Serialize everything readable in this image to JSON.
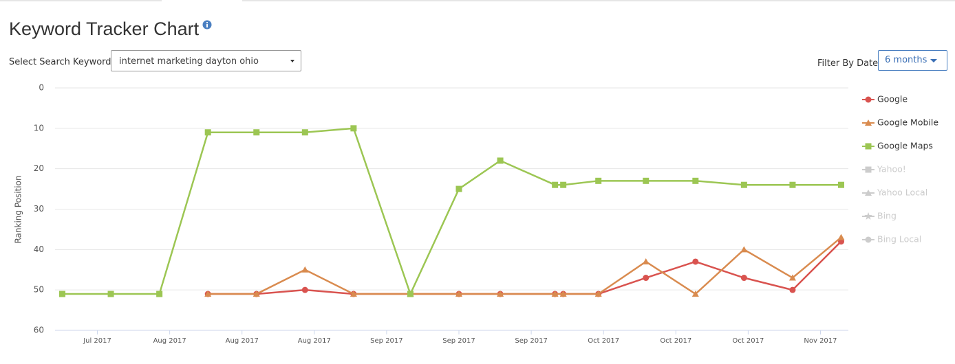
{
  "page": {
    "title": "Keyword Tracker Chart",
    "keyword_label": "Select Search Keyword:",
    "keyword": "internet marketing dayton ohio",
    "filter_label": "Filter By Date",
    "filter_value": "6 months"
  },
  "chart_data": {
    "type": "line",
    "y_label": "Ranking Position",
    "y_inverted": true,
    "grid": true,
    "x": [
      -3.4,
      1.3,
      6,
      10.7,
      15.4,
      20.1,
      24.8,
      30.3,
      35,
      39,
      44.3,
      45.1,
      48.5,
      53.1,
      57.9,
      62.6,
      67.3,
      72
    ],
    "xlim": [
      -4.1,
      72.7
    ],
    "xticks": [
      {
        "value": 0,
        "label": "Jul 2017"
      },
      {
        "value": 7,
        "label": "Aug 2017"
      },
      {
        "value": 14,
        "label": "Aug 2017"
      },
      {
        "value": 21,
        "label": "Aug 2017"
      },
      {
        "value": 28,
        "label": "Sep 2017"
      },
      {
        "value": 35,
        "label": "Sep 2017"
      },
      {
        "value": 42,
        "label": "Sep 2017"
      },
      {
        "value": 49,
        "label": "Oct 2017"
      },
      {
        "value": 56,
        "label": "Oct 2017"
      },
      {
        "value": 63,
        "label": "Oct 2017"
      },
      {
        "value": 70,
        "label": "Nov 2017"
      }
    ],
    "ylim": [
      0,
      60
    ],
    "yticks": [
      0,
      10,
      20,
      30,
      40,
      50,
      60
    ],
    "series": [
      {
        "name": "Google",
        "color": "#d9534f",
        "marker": "circle",
        "visible": true,
        "values": [
          null,
          null,
          null,
          51,
          51,
          50,
          51,
          51,
          51,
          51,
          51,
          51,
          51,
          47,
          43,
          47,
          50,
          38
        ]
      },
      {
        "name": "Google Mobile",
        "color": "#d98b4f",
        "marker": "triangle",
        "visible": true,
        "values": [
          null,
          null,
          null,
          51,
          51,
          45,
          51,
          51,
          51,
          51,
          51,
          51,
          51,
          43,
          51,
          40,
          47,
          37
        ]
      },
      {
        "name": "Google Maps",
        "color": "#9cc653",
        "marker": "square",
        "visible": true,
        "values": [
          51,
          51,
          51,
          11,
          11,
          11,
          10,
          51,
          25,
          18,
          24,
          24,
          23,
          23,
          23,
          24,
          24,
          24
        ]
      },
      {
        "name": "Yahoo!",
        "color": "#cccccc",
        "marker": "square",
        "visible": false,
        "values": [
          null,
          null,
          null,
          null,
          null,
          null,
          null,
          null,
          null,
          null,
          null,
          null,
          null,
          null,
          null,
          null,
          null,
          null
        ]
      },
      {
        "name": "Yahoo Local",
        "color": "#cccccc",
        "marker": "triangle",
        "visible": false,
        "values": [
          null,
          null,
          null,
          null,
          null,
          null,
          null,
          null,
          null,
          null,
          null,
          null,
          null,
          null,
          null,
          null,
          null,
          null
        ]
      },
      {
        "name": "Bing",
        "color": "#cccccc",
        "marker": "star",
        "visible": false,
        "values": [
          null,
          null,
          null,
          null,
          null,
          null,
          null,
          null,
          null,
          null,
          null,
          null,
          null,
          null,
          null,
          null,
          null,
          null
        ]
      },
      {
        "name": "Bing Local",
        "color": "#cccccc",
        "marker": "circle",
        "visible": false,
        "values": [
          null,
          null,
          null,
          null,
          null,
          null,
          null,
          null,
          null,
          null,
          null,
          null,
          null,
          null,
          null,
          null,
          null,
          null
        ]
      }
    ]
  }
}
